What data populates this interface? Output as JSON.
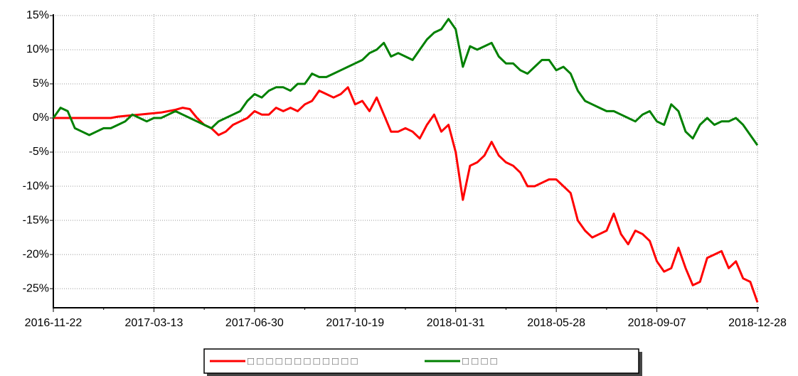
{
  "chart_data": {
    "type": "line",
    "categories": [
      "2016-11-22",
      null,
      null,
      null,
      null,
      null,
      null,
      null,
      null,
      null,
      null,
      null,
      null,
      null,
      "2017-03-13",
      null,
      null,
      null,
      null,
      null,
      null,
      null,
      null,
      null,
      null,
      null,
      null,
      null,
      "2017-06-30",
      null,
      null,
      null,
      null,
      null,
      null,
      null,
      null,
      null,
      null,
      null,
      null,
      null,
      "2017-10-19",
      null,
      null,
      null,
      null,
      null,
      null,
      null,
      null,
      null,
      null,
      null,
      null,
      null,
      "2018-01-31",
      null,
      null,
      null,
      null,
      null,
      null,
      null,
      null,
      null,
      null,
      null,
      null,
      null,
      "2018-05-28",
      null,
      null,
      null,
      null,
      null,
      null,
      null,
      null,
      null,
      null,
      null,
      null,
      null,
      "2018-09-07",
      null,
      null,
      null,
      null,
      null,
      null,
      null,
      null,
      null,
      null,
      null,
      null,
      null,
      "2018-12-28"
    ],
    "series": [
      {
        "name": "□ □ □ □ □ □ □ □ □ □ □ □",
        "color": "#ff0000",
        "values": [
          0,
          0,
          0,
          0,
          0,
          0,
          0,
          0,
          0,
          0.2,
          0.3,
          0.4,
          0.5,
          0.6,
          0.7,
          0.8,
          1.0,
          1.2,
          1.5,
          1.3,
          0.0,
          -1.0,
          -1.5,
          -2.5,
          -2.0,
          -1.0,
          -0.5,
          0.0,
          1.0,
          0.5,
          0.5,
          1.5,
          1.0,
          1.5,
          1.0,
          2.0,
          2.5,
          4.0,
          3.5,
          3.0,
          3.5,
          4.5,
          2.0,
          2.5,
          1.0,
          3.0,
          0.5,
          -2.0,
          -2.0,
          -1.5,
          -2.0,
          -3.0,
          -1.0,
          0.5,
          -2.0,
          -1.0,
          -5.0,
          -12.0,
          -7.0,
          -6.5,
          -5.5,
          -3.5,
          -5.5,
          -6.5,
          -7.0,
          -8.0,
          -10.0,
          -10.0,
          -9.5,
          -9.0,
          -9.0,
          -10.0,
          -11.0,
          -15.0,
          -16.5,
          -17.5,
          -17.0,
          -16.5,
          -14.0,
          -17.0,
          -18.5,
          -16.5,
          -17.0,
          -18.0,
          -21.0,
          -22.5,
          -22.0,
          -19.0,
          -22.0,
          -24.5,
          -24.0,
          -20.5,
          -20.0,
          -19.5,
          -22.0,
          -21.0,
          -23.5,
          -24.0,
          -27.0
        ]
      },
      {
        "name": "□ □ □ □",
        "color": "#008000",
        "values": [
          0,
          1.5,
          1.0,
          -1.5,
          -2.0,
          -2.5,
          -2.0,
          -1.5,
          -1.5,
          -1.0,
          -0.5,
          0.5,
          0.0,
          -0.5,
          0.0,
          0.0,
          0.5,
          1.0,
          0.5,
          0.0,
          -0.5,
          -1.0,
          -1.5,
          -0.5,
          0.0,
          0.5,
          1.0,
          2.5,
          3.5,
          3.0,
          4.0,
          4.5,
          4.5,
          4.0,
          5.0,
          5.0,
          6.5,
          6.0,
          6.0,
          6.5,
          7.0,
          7.5,
          8.0,
          8.5,
          9.5,
          10.0,
          11.0,
          9.0,
          9.5,
          9.0,
          8.5,
          10.0,
          11.5,
          12.5,
          13.0,
          14.5,
          13.0,
          7.5,
          10.5,
          10.0,
          10.5,
          11.0,
          9.0,
          8.0,
          8.0,
          7.0,
          6.5,
          7.5,
          8.5,
          8.5,
          7.0,
          7.5,
          6.5,
          4.0,
          2.5,
          2.0,
          1.5,
          1.0,
          1.0,
          0.5,
          0.0,
          -0.5,
          0.5,
          1.0,
          -0.5,
          -1.0,
          2.0,
          1.0,
          -2.0,
          -3.0,
          -1.0,
          0.0,
          -1.0,
          -0.5,
          -0.5,
          0.0,
          -1.0,
          -2.5,
          -4.0
        ]
      }
    ],
    "ylim": [
      -27.8,
      15.2
    ],
    "yticks": [
      {
        "value": 15,
        "label": "15%"
      },
      {
        "value": 10,
        "label": "10%"
      },
      {
        "value": 5,
        "label": "5%"
      },
      {
        "value": 0,
        "label": "0%"
      },
      {
        "value": -5,
        "label": "-5%"
      },
      {
        "value": -10,
        "label": "-10%"
      },
      {
        "value": -15,
        "label": "-15%"
      },
      {
        "value": -20,
        "label": "-20%"
      },
      {
        "value": -25,
        "label": "-25%"
      }
    ],
    "grid": true,
    "legend": "bottom"
  }
}
